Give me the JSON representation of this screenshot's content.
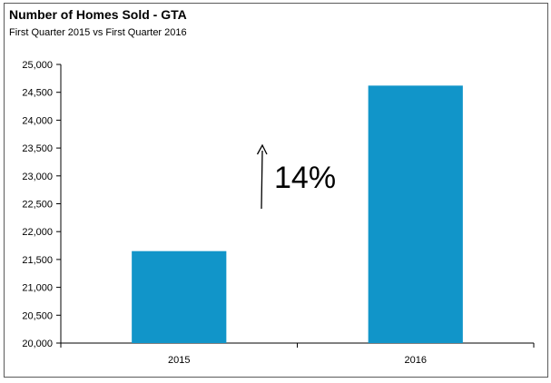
{
  "title": "Number of Homes Sold - GTA",
  "subtitle": "First Quarter 2015 vs First Quarter 2016",
  "annotation": {
    "text": "14%",
    "arrow": "up"
  },
  "colors": {
    "bar": "#1195c9",
    "axis": "#000000",
    "frame": "#5a5a5a"
  },
  "chart_data": {
    "type": "bar",
    "title": "Number of Homes Sold - GTA",
    "subtitle": "First Quarter 2015 vs First Quarter 2016",
    "categories": [
      "2015",
      "2016"
    ],
    "values": [
      21650,
      24620
    ],
    "xlabel": "",
    "ylabel": "",
    "ylim": [
      20000,
      25000
    ],
    "ytick_values": [
      20000,
      20500,
      21000,
      21500,
      22000,
      22500,
      23000,
      23500,
      24000,
      24500,
      25000
    ],
    "ytick_labels": [
      "20,000",
      "20,500",
      "21,000",
      "21,500",
      "22,000",
      "22,500",
      "23,000",
      "23,500",
      "24,000",
      "24,500",
      "25,000"
    ],
    "grid": false,
    "legend": "none"
  }
}
